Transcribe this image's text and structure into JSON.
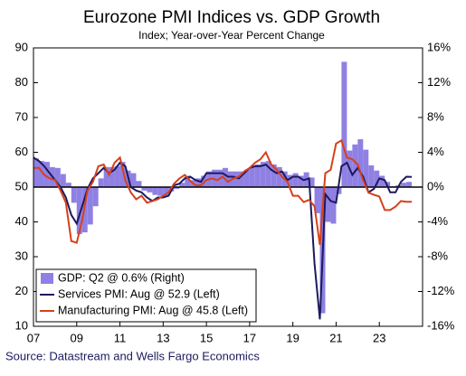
{
  "chart_data": {
    "type": "combo",
    "title": "Eurozone PMI Indices vs. GDP Growth",
    "subtitle": "Index; Year-over-Year Percent Change",
    "source": "Source: Datastream and Wells Fargo Economics",
    "x": [
      2007,
      2007.25,
      2007.5,
      2007.75,
      2008,
      2008.25,
      2008.5,
      2008.75,
      2009,
      2009.25,
      2009.5,
      2009.75,
      2010,
      2010.25,
      2010.5,
      2010.75,
      2011,
      2011.25,
      2011.5,
      2011.75,
      2012,
      2012.25,
      2012.5,
      2012.75,
      2013,
      2013.25,
      2013.5,
      2013.75,
      2014,
      2014.25,
      2014.5,
      2014.75,
      2015,
      2015.25,
      2015.5,
      2015.75,
      2016,
      2016.25,
      2016.5,
      2016.75,
      2017,
      2017.25,
      2017.5,
      2017.75,
      2018,
      2018.25,
      2018.5,
      2018.75,
      2019,
      2019.25,
      2019.5,
      2019.75,
      2020,
      2020.25,
      2020.5,
      2020.75,
      2021,
      2021.25,
      2021.5,
      2021.75,
      2022,
      2022.25,
      2022.5,
      2022.75,
      2023,
      2023.25,
      2023.5,
      2023.75,
      2024,
      2024.25,
      2024.5
    ],
    "xlim": [
      2007,
      2025
    ],
    "xticks": [
      {
        "value": 2007,
        "label": "07"
      },
      {
        "value": 2009,
        "label": "09"
      },
      {
        "value": 2011,
        "label": "11"
      },
      {
        "value": 2013,
        "label": "13"
      },
      {
        "value": 2015,
        "label": "15"
      },
      {
        "value": 2017,
        "label": "17"
      },
      {
        "value": 2019,
        "label": "19"
      },
      {
        "value": 2021,
        "label": "21"
      },
      {
        "value": 2023,
        "label": "23"
      }
    ],
    "ylim": [
      10,
      90
    ],
    "yticks": [
      10,
      20,
      30,
      40,
      50,
      60,
      70,
      80,
      90
    ],
    "y2lim": [
      -16,
      16
    ],
    "y2ticks": [
      {
        "value": -16,
        "label": "-16%"
      },
      {
        "value": -12,
        "label": "-12%"
      },
      {
        "value": -8,
        "label": "-8%"
      },
      {
        "value": -4,
        "label": "-4%"
      },
      {
        "value": 0,
        "label": "0%"
      },
      {
        "value": 4,
        "label": "4%"
      },
      {
        "value": 8,
        "label": "8%"
      },
      {
        "value": 12,
        "label": "12%"
      },
      {
        "value": 16,
        "label": "16%"
      }
    ],
    "reference_line": 50,
    "series": [
      {
        "name": "GDP: Q2 @ 0.6% (Right)",
        "type": "bar",
        "axis": "y2",
        "color": "#8f80e3",
        "values": [
          3.3,
          3.0,
          2.9,
          2.3,
          2.2,
          1.5,
          0.5,
          -1.8,
          -5.4,
          -5.2,
          -4.3,
          -2.2,
          1.0,
          2.3,
          2.3,
          2.4,
          2.9,
          1.9,
          1.6,
          0.7,
          -0.4,
          -0.6,
          -0.9,
          -1.0,
          -1.1,
          -0.5,
          -0.2,
          0.5,
          1.3,
          0.8,
          1.0,
          1.3,
          1.8,
          2.0,
          2.0,
          2.2,
          1.8,
          1.8,
          1.8,
          2.0,
          2.3,
          2.6,
          2.9,
          3.0,
          2.6,
          2.3,
          1.8,
          1.4,
          1.6,
          1.3,
          1.7,
          1.1,
          -3.0,
          -14.5,
          -4.0,
          -4.2,
          -0.8,
          14.4,
          4.2,
          4.9,
          5.5,
          4.3,
          2.5,
          1.9,
          1.3,
          0.6,
          0.1,
          0.2,
          0.5,
          0.6,
          null
        ]
      },
      {
        "name": "Services PMI: Aug @ 52.9 (Left)",
        "type": "line",
        "color": "#1c1a5e",
        "values": [
          58.5,
          57.5,
          56,
          54,
          52,
          50,
          47,
          42,
          39.5,
          44.5,
          49.5,
          52.5,
          54,
          55.5,
          54,
          55,
          57,
          56,
          50,
          49,
          48.5,
          47,
          46,
          47,
          47,
          47.5,
          50.5,
          51,
          52.5,
          53,
          52,
          51.5,
          54,
          54,
          54,
          54,
          53,
          53,
          52.5,
          54,
          55.5,
          56,
          56,
          56.5,
          55,
          54,
          54.5,
          52,
          53,
          53,
          52,
          52.5,
          28,
          12,
          48,
          46,
          45.5,
          56,
          57,
          53.5,
          55.5,
          53,
          48.5,
          49.5,
          52.5,
          52,
          48.5,
          48.5,
          51.5,
          53,
          52.9
        ]
      },
      {
        "name": "Manufacturing PMI: Aug @ 45.8 (Left)",
        "type": "line",
        "color": "#d6401c",
        "values": [
          55.5,
          55.5,
          53.5,
          52.5,
          52,
          49,
          45.5,
          34.5,
          34,
          40.5,
          49,
          51.5,
          56,
          56.5,
          53.5,
          57,
          58.5,
          52,
          48.5,
          46.5,
          47.5,
          45.5,
          46,
          46.5,
          47.5,
          48.5,
          51,
          52.5,
          53.5,
          51.8,
          50.5,
          50.5,
          52,
          52.5,
          52,
          53,
          51.5,
          52.5,
          53,
          54.5,
          55.5,
          57,
          58,
          60,
          56.5,
          55,
          53,
          51.5,
          47.5,
          47.5,
          45.7,
          46.3,
          44.5,
          33.4,
          54,
          55,
          62.5,
          63.4,
          58.5,
          58,
          56.5,
          52,
          48.4,
          47.8,
          47.3,
          43.4,
          43.4,
          44.4,
          46,
          45.8,
          45.8
        ]
      }
    ]
  }
}
